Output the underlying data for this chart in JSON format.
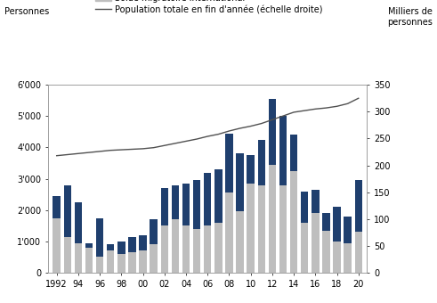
{
  "years": [
    1992,
    1993,
    1994,
    1995,
    1996,
    1997,
    1998,
    1999,
    2000,
    2001,
    2002,
    2003,
    2004,
    2005,
    2006,
    2007,
    2008,
    2009,
    2010,
    2011,
    2012,
    2013,
    2014,
    2015,
    2016,
    2017,
    2018,
    2019,
    2020
  ],
  "intercantonal": [
    700,
    1650,
    1300,
    150,
    1250,
    200,
    400,
    500,
    500,
    800,
    1200,
    1100,
    1350,
    1550,
    1700,
    1700,
    1900,
    1850,
    900,
    1450,
    2100,
    2200,
    1150,
    1000,
    750,
    550,
    1100,
    850,
    1650
  ],
  "international": [
    1750,
    1150,
    950,
    800,
    500,
    700,
    600,
    650,
    700,
    900,
    1500,
    1700,
    1500,
    1400,
    1500,
    1600,
    2550,
    1950,
    2850,
    2800,
    3450,
    2800,
    3250,
    1600,
    1900,
    1350,
    1000,
    950,
    1300
  ],
  "population": [
    218,
    220,
    222,
    224,
    226,
    228,
    229,
    230,
    231,
    233,
    237,
    241,
    245,
    249,
    254,
    258,
    264,
    269,
    273,
    278,
    285,
    292,
    299,
    302,
    305,
    307,
    310,
    315,
    325
  ],
  "bar_intercantonal_color": "#1F3F6E",
  "bar_international_color": "#BEBEBE",
  "line_color": "#505050",
  "ylabel_left": "Personnes",
  "ylabel_right": "Milliers de\npersonnes",
  "ylim_left": [
    0,
    6000
  ],
  "ylim_right": [
    0,
    350
  ],
  "yticks_left": [
    0,
    1000,
    2000,
    3000,
    4000,
    5000,
    6000
  ],
  "yticks_left_labels": [
    "0",
    "1'000",
    "2'000",
    "3'000",
    "4'000",
    "5'000",
    "6'000"
  ],
  "yticks_right": [
    0,
    50,
    100,
    150,
    200,
    250,
    300,
    350
  ],
  "legend_population": "Population totale en fin d'année (échelle droite)",
  "xtick_labels": [
    "1992",
    "94",
    "96",
    "98",
    "00",
    "02",
    "04",
    "06",
    "08",
    "10",
    "12",
    "14",
    "16",
    "18",
    "20"
  ],
  "xtick_positions": [
    1992,
    1994,
    1996,
    1998,
    2000,
    2002,
    2004,
    2006,
    2008,
    2010,
    2012,
    2014,
    2016,
    2018,
    2020
  ],
  "background_color": "#FFFFFF",
  "font_size": 7.0
}
